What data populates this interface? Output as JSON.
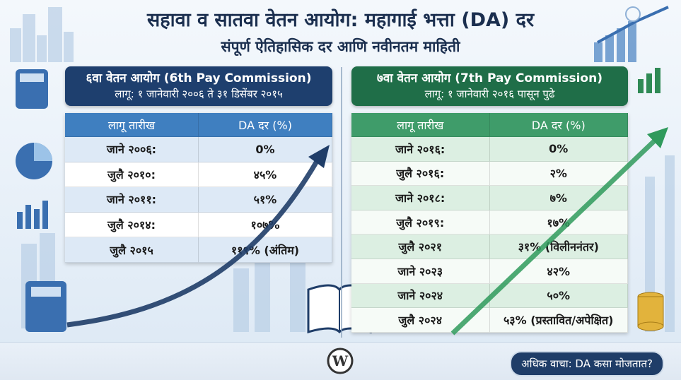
{
  "header": {
    "title": "सहावा व सातवा वेतन आयोग: महागाई भत्ता (DA) दर",
    "subtitle": "संपूर्ण ऐतिहासिक दर आणि नवीनतम माहिती"
  },
  "panels": [
    {
      "title": "६वा वेतन आयोग (6th Pay Commission)",
      "subtitle": "लागू: १ जानेवारी २००६ ते ३१ डिसेंबर २०१५",
      "columns": [
        "लागू तारीख",
        "DA दर (%)"
      ],
      "rows": [
        [
          "जाने २००६:",
          "0%"
        ],
        [
          "जुलै २०१०:",
          "४५%"
        ],
        [
          "जाने २०११:",
          "५१%"
        ],
        [
          "जुलै २०१४:",
          "१०७%"
        ],
        [
          "जुलै २०१५",
          "११९% (अंतिम)"
        ]
      ]
    },
    {
      "title": "७वा वेतन आयोग (7th Pay Commission)",
      "subtitle": "लागू: १ जानेवारी २०१६ पासून पुढे",
      "columns": [
        "लागू तारीख",
        "DA दर (%)"
      ],
      "rows": [
        [
          "जाने २०१६:",
          "0%"
        ],
        [
          "जुलै २०१६:",
          "२%"
        ],
        [
          "जाने २०१८:",
          "७%"
        ],
        [
          "जुलै २०१९:",
          "१७%"
        ],
        [
          "जुलै २०२१",
          "३१% (विलीननंतर)"
        ],
        [
          "जाने २०२३",
          "४२%"
        ],
        [
          "जाने २०२४",
          "५०%"
        ],
        [
          "जुलै २०२४",
          "५३% (प्रस्तावित/अपेक्षित)"
        ]
      ]
    }
  ],
  "footer": {
    "button": "अधिक वाचा: DA कसा मोजतात?"
  }
}
